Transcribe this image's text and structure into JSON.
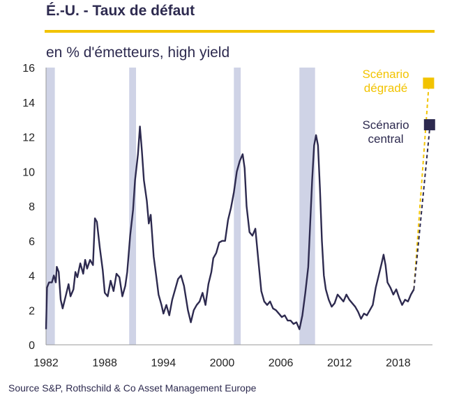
{
  "header": {
    "title": "É.-U. - Taux de défaut",
    "subtitle": "en % d'émetteurs, high yield"
  },
  "source": "Source S&P, Rothschild & Co Asset Management  Europe",
  "colors": {
    "series": "#2d2a4f",
    "recession": "#cfd3e6",
    "adverse": "#f2c300",
    "central": "#2d2a4f",
    "rule": "#f2c300"
  },
  "chart_data": {
    "type": "line",
    "xlim": [
      1982,
      2021.5
    ],
    "ylim": [
      0,
      16
    ],
    "x_ticks": [
      1982,
      1988,
      1994,
      2000,
      2006,
      2012,
      2018
    ],
    "y_ticks": [
      0,
      2,
      4,
      6,
      8,
      10,
      12,
      14,
      16
    ],
    "grid": false,
    "recessions": [
      [
        1982.0,
        1982.9
      ],
      [
        1990.5,
        1991.2
      ],
      [
        2001.2,
        2001.9
      ],
      [
        2007.9,
        2009.5
      ]
    ],
    "series": [
      {
        "points": [
          [
            1982.0,
            0.9
          ],
          [
            1982.1,
            3.3
          ],
          [
            1982.3,
            3.6
          ],
          [
            1982.6,
            3.6
          ],
          [
            1982.8,
            4.0
          ],
          [
            1983.0,
            3.6
          ],
          [
            1983.1,
            4.5
          ],
          [
            1983.3,
            4.2
          ],
          [
            1983.5,
            2.6
          ],
          [
            1983.7,
            2.1
          ],
          [
            1984.0,
            2.8
          ],
          [
            1984.3,
            3.5
          ],
          [
            1984.5,
            2.8
          ],
          [
            1984.8,
            3.2
          ],
          [
            1985.0,
            4.2
          ],
          [
            1985.2,
            3.9
          ],
          [
            1985.5,
            4.7
          ],
          [
            1985.8,
            4.1
          ],
          [
            1986.0,
            4.9
          ],
          [
            1986.2,
            4.4
          ],
          [
            1986.5,
            4.9
          ],
          [
            1986.8,
            4.6
          ],
          [
            1987.0,
            7.3
          ],
          [
            1987.2,
            7.1
          ],
          [
            1987.5,
            5.6
          ],
          [
            1987.8,
            4.3
          ],
          [
            1988.0,
            3.0
          ],
          [
            1988.3,
            2.8
          ],
          [
            1988.6,
            3.7
          ],
          [
            1988.9,
            3.1
          ],
          [
            1989.2,
            4.1
          ],
          [
            1989.5,
            3.9
          ],
          [
            1989.8,
            2.8
          ],
          [
            1990.1,
            3.4
          ],
          [
            1990.3,
            4.2
          ],
          [
            1990.6,
            6.3
          ],
          [
            1990.9,
            7.8
          ],
          [
            1991.1,
            9.5
          ],
          [
            1991.4,
            11.0
          ],
          [
            1991.6,
            12.6
          ],
          [
            1991.8,
            11.2
          ],
          [
            1992.0,
            9.5
          ],
          [
            1992.3,
            8.3
          ],
          [
            1992.5,
            7.0
          ],
          [
            1992.7,
            7.5
          ],
          [
            1993.0,
            5.1
          ],
          [
            1993.3,
            3.8
          ],
          [
            1993.5,
            2.9
          ],
          [
            1993.8,
            2.3
          ],
          [
            1994.0,
            1.8
          ],
          [
            1994.3,
            2.3
          ],
          [
            1994.6,
            1.7
          ],
          [
            1994.9,
            2.6
          ],
          [
            1995.2,
            3.2
          ],
          [
            1995.5,
            3.8
          ],
          [
            1995.8,
            4.0
          ],
          [
            1996.1,
            3.4
          ],
          [
            1996.3,
            2.7
          ],
          [
            1996.5,
            2.0
          ],
          [
            1996.8,
            1.3
          ],
          [
            1997.1,
            2.0
          ],
          [
            1997.4,
            2.3
          ],
          [
            1997.7,
            2.5
          ],
          [
            1998.0,
            3.0
          ],
          [
            1998.3,
            2.3
          ],
          [
            1998.6,
            3.5
          ],
          [
            1998.9,
            4.2
          ],
          [
            1999.1,
            5.0
          ],
          [
            1999.4,
            5.3
          ],
          [
            1999.7,
            5.9
          ],
          [
            2000.0,
            6.0
          ],
          [
            2000.3,
            6.0
          ],
          [
            2000.6,
            7.2
          ],
          [
            2000.9,
            7.9
          ],
          [
            2001.2,
            8.8
          ],
          [
            2001.5,
            10.0
          ],
          [
            2001.8,
            10.6
          ],
          [
            2002.1,
            11.0
          ],
          [
            2002.3,
            10.2
          ],
          [
            2002.5,
            8.0
          ],
          [
            2002.8,
            6.5
          ],
          [
            2003.1,
            6.3
          ],
          [
            2003.4,
            6.7
          ],
          [
            2003.7,
            4.9
          ],
          [
            2004.0,
            3.1
          ],
          [
            2004.3,
            2.5
          ],
          [
            2004.6,
            2.3
          ],
          [
            2004.9,
            2.5
          ],
          [
            2005.2,
            2.1
          ],
          [
            2005.5,
            2.0
          ],
          [
            2005.8,
            1.8
          ],
          [
            2006.1,
            1.6
          ],
          [
            2006.4,
            1.7
          ],
          [
            2006.7,
            1.4
          ],
          [
            2007.0,
            1.4
          ],
          [
            2007.3,
            1.2
          ],
          [
            2007.6,
            1.3
          ],
          [
            2007.9,
            0.9
          ],
          [
            2008.2,
            1.7
          ],
          [
            2008.5,
            3.0
          ],
          [
            2008.8,
            4.5
          ],
          [
            2009.0,
            7.0
          ],
          [
            2009.2,
            9.5
          ],
          [
            2009.4,
            11.5
          ],
          [
            2009.6,
            12.1
          ],
          [
            2009.8,
            11.5
          ],
          [
            2010.0,
            9.0
          ],
          [
            2010.2,
            6.0
          ],
          [
            2010.4,
            4.0
          ],
          [
            2010.6,
            3.2
          ],
          [
            2010.9,
            2.6
          ],
          [
            2011.2,
            2.2
          ],
          [
            2011.5,
            2.4
          ],
          [
            2011.8,
            2.9
          ],
          [
            2012.1,
            2.7
          ],
          [
            2012.4,
            2.5
          ],
          [
            2012.7,
            2.9
          ],
          [
            2013.0,
            2.6
          ],
          [
            2013.3,
            2.4
          ],
          [
            2013.6,
            2.2
          ],
          [
            2013.9,
            1.9
          ],
          [
            2014.2,
            1.5
          ],
          [
            2014.5,
            1.8
          ],
          [
            2014.8,
            1.7
          ],
          [
            2015.1,
            2.0
          ],
          [
            2015.4,
            2.3
          ],
          [
            2015.7,
            3.3
          ],
          [
            2016.0,
            4.0
          ],
          [
            2016.3,
            4.7
          ],
          [
            2016.5,
            5.2
          ],
          [
            2016.7,
            4.6
          ],
          [
            2016.9,
            3.6
          ],
          [
            2017.2,
            3.3
          ],
          [
            2017.5,
            2.9
          ],
          [
            2017.8,
            3.2
          ],
          [
            2018.1,
            2.7
          ],
          [
            2018.4,
            2.3
          ],
          [
            2018.7,
            2.6
          ],
          [
            2019.0,
            2.5
          ],
          [
            2019.3,
            2.9
          ],
          [
            2019.6,
            3.2
          ]
        ]
      }
    ],
    "scenarios": [
      {
        "label_lines": [
          "Scénario",
          "dégradé"
        ],
        "from": [
          2019.6,
          3.2
        ],
        "to": [
          2021.1,
          15.1
        ]
      },
      {
        "label_lines": [
          "Scénario",
          "central"
        ],
        "from": [
          2019.6,
          3.2
        ],
        "to": [
          2021.2,
          12.7
        ]
      }
    ]
  }
}
